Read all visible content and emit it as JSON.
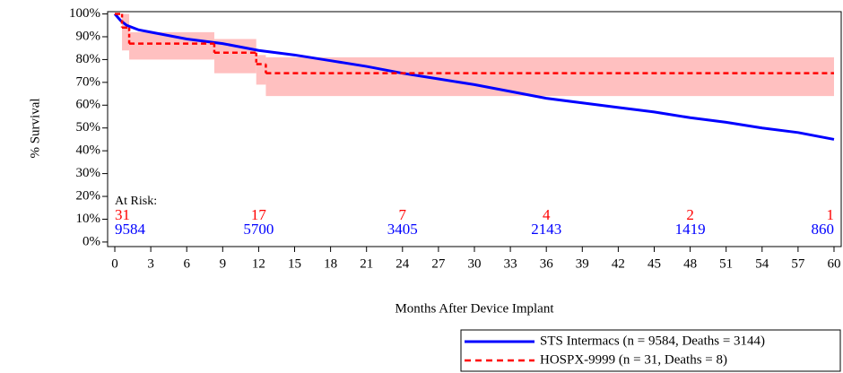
{
  "chart_data": {
    "type": "km",
    "ylabel": "% Survival",
    "xlabel": "Months After Device Implant",
    "xlim": [
      -0.6,
      60.6
    ],
    "ylim": [
      -2,
      101
    ],
    "xticks": [
      0,
      3,
      6,
      9,
      12,
      15,
      18,
      21,
      24,
      27,
      30,
      33,
      36,
      39,
      42,
      45,
      48,
      51,
      54,
      57,
      60
    ],
    "yticks": [
      {
        "value": 0,
        "label": "0%"
      },
      {
        "value": 10,
        "label": "10%"
      },
      {
        "value": 20,
        "label": "20%"
      },
      {
        "value": 30,
        "label": "30%"
      },
      {
        "value": 40,
        "label": "40%"
      },
      {
        "value": 50,
        "label": "50%"
      },
      {
        "value": 60,
        "label": "60%"
      },
      {
        "value": 70,
        "label": "70%"
      },
      {
        "value": 80,
        "label": "80%"
      },
      {
        "value": 90,
        "label": "90%"
      },
      {
        "value": 100,
        "label": "100%"
      }
    ],
    "series": [
      {
        "name": "STS Intermacs (n = 9584, Deaths = 3144)",
        "color": "#0000ff",
        "style": "line",
        "x": [
          0,
          0.5,
          1,
          2,
          3,
          6,
          9,
          12,
          15,
          18,
          21,
          24,
          27,
          30,
          33,
          36,
          39,
          42,
          45,
          48,
          51,
          54,
          57,
          60
        ],
        "values": [
          100,
          97,
          95,
          93,
          92,
          89,
          87,
          84,
          82,
          79.5,
          77,
          74,
          71.5,
          69,
          66,
          63,
          61,
          59,
          57,
          54.5,
          52.5,
          50,
          48,
          45
        ]
      },
      {
        "name": "HOSPX-9999 (n = 31, Deaths = 8)",
        "color": "#ff0000",
        "style": "step",
        "band_color": "#ffc0c0",
        "x": [
          0,
          0.6,
          1.2,
          8.3,
          11.8,
          12.6,
          60
        ],
        "values": [
          100,
          94,
          87,
          83,
          78,
          74,
          74
        ],
        "lower": [
          100,
          84,
          80,
          74,
          69,
          64,
          64
        ],
        "upper": [
          100,
          100,
          92,
          89,
          82,
          81,
          81
        ]
      }
    ],
    "at_risk": {
      "label": "At Risk:",
      "x": [
        0,
        12,
        24,
        36,
        48,
        60
      ],
      "rows": [
        {
          "color": "#ff0000",
          "values": [
            31,
            17,
            7,
            4,
            2,
            1
          ]
        },
        {
          "color": "#0000ff",
          "values": [
            9584,
            5700,
            3405,
            2143,
            1419,
            860
          ]
        }
      ]
    }
  }
}
